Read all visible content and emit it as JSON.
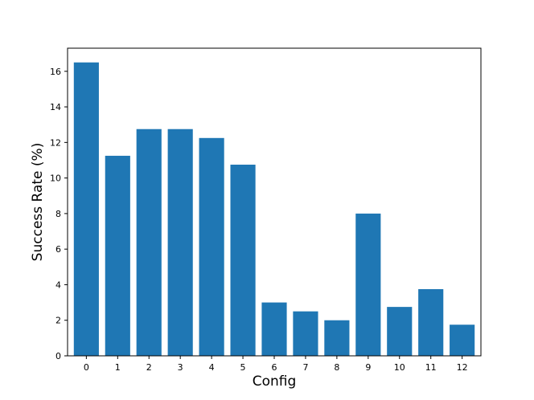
{
  "chart_data": {
    "type": "bar",
    "categories": [
      "0",
      "1",
      "2",
      "3",
      "4",
      "5",
      "6",
      "7",
      "8",
      "9",
      "10",
      "11",
      "12"
    ],
    "values": [
      16.5,
      11.25,
      12.75,
      12.75,
      12.25,
      10.75,
      3.0,
      2.5,
      2.0,
      8.0,
      2.75,
      3.75,
      1.75
    ],
    "title": "",
    "xlabel": "Config",
    "ylabel": "Success Rate (%)",
    "ylim": [
      0,
      17.3
    ],
    "yticks": [
      "0",
      "2",
      "4",
      "6",
      "8",
      "10",
      "12",
      "14",
      "16"
    ],
    "bar_color": "#1f77b4",
    "grid": false,
    "legend": "none"
  }
}
